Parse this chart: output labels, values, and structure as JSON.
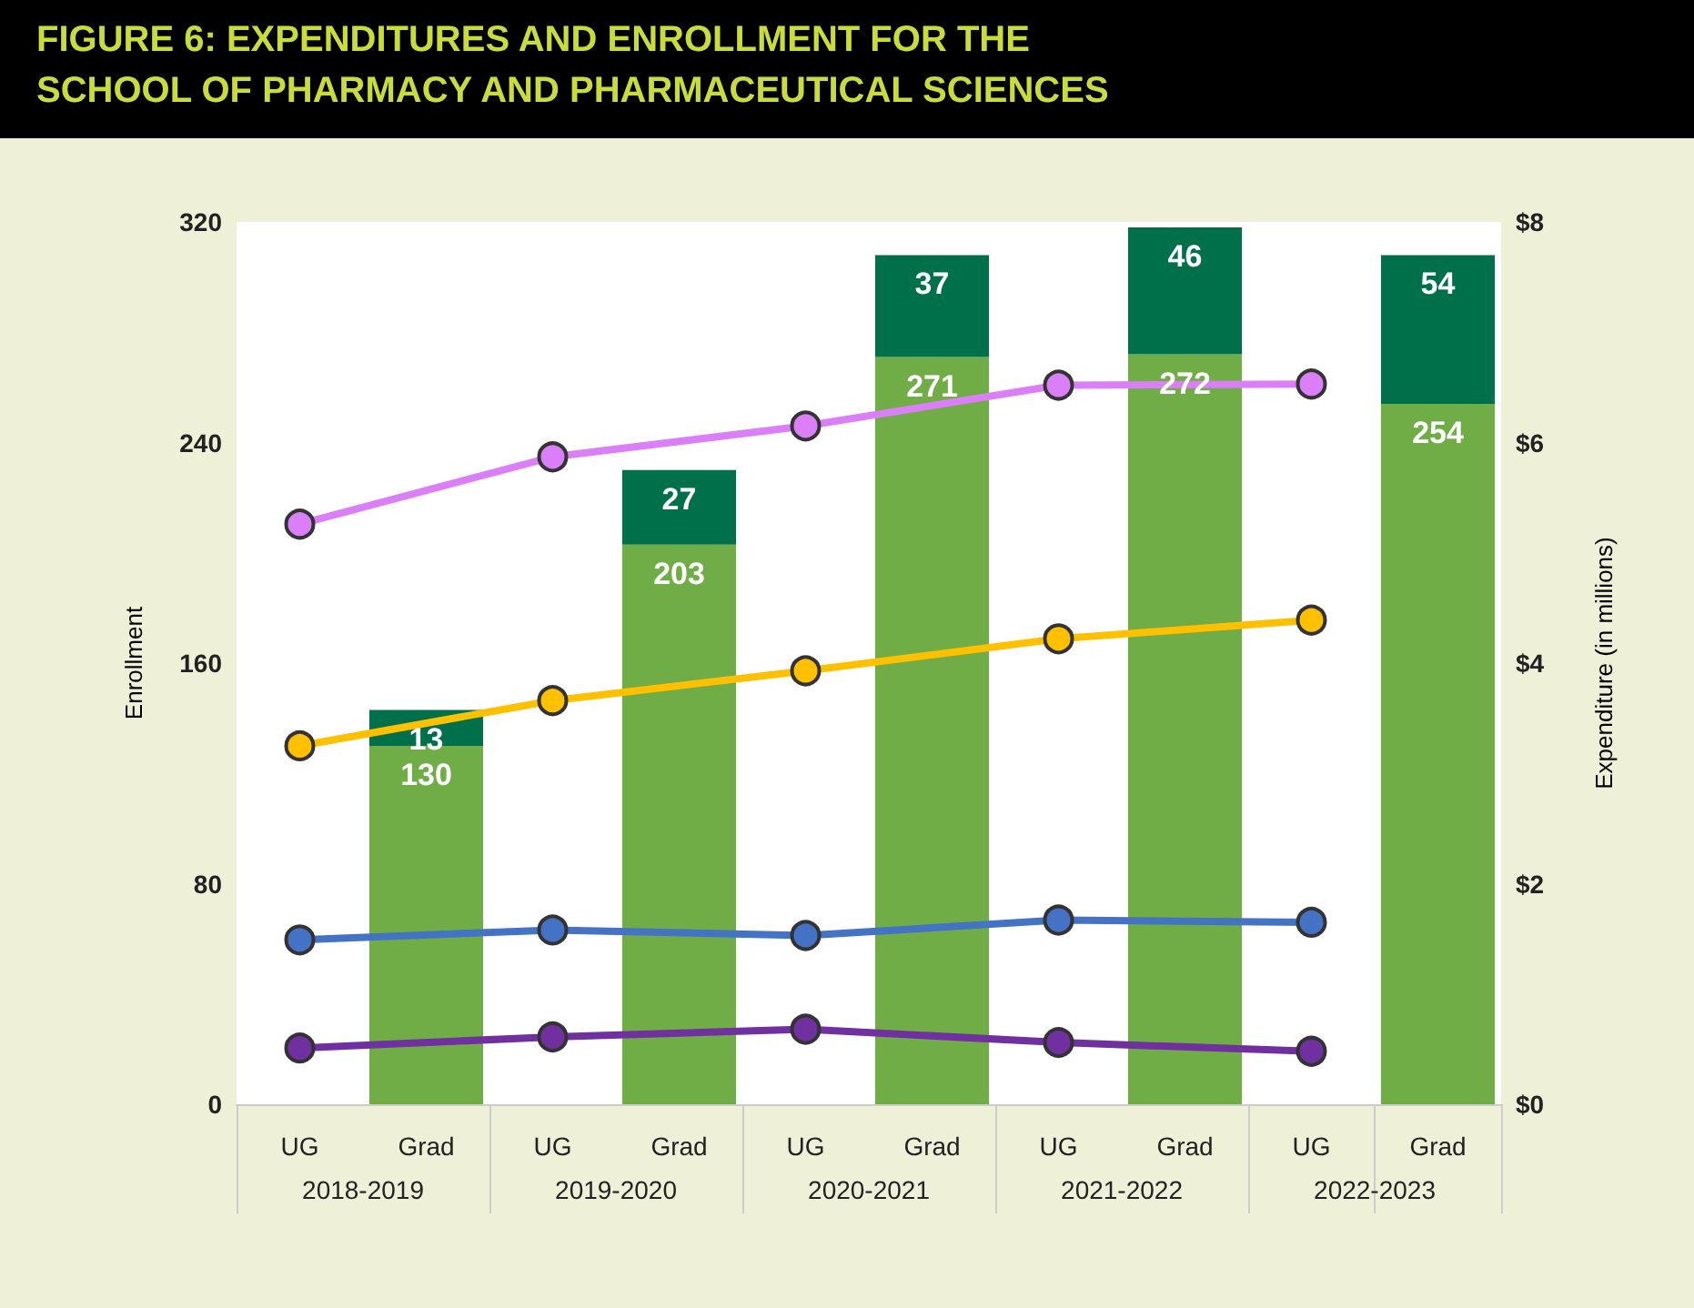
{
  "chart_data": {
    "type": "bar",
    "title": "FIGURE 6: EXPENDITURES AND ENROLLMENT FOR THE SCHOOL OF PHARMACY AND PHARMACEUTICAL SCIENCES",
    "ylabel": "Enrollment",
    "y2label": "Expenditure (in millions)",
    "categories": [
      "UG",
      "Grad",
      "UG",
      "Grad",
      "UG",
      "Grad",
      "UG",
      "Grad",
      "UG",
      "Grad"
    ],
    "annotations": [
      "2018-2019",
      "2019-2020",
      "2020-2021",
      "2021-2022",
      "2022-2023"
    ],
    "stacked": true,
    "grid": false,
    "marker": "circle",
    "line_style": "solid",
    "ylim": [
      0,
      320
    ],
    "yticks": [
      0,
      80,
      160,
      240,
      320
    ],
    "y2lim": [
      0,
      8
    ],
    "y2ticks": [
      {
        "value": 0,
        "label": "$0"
      },
      {
        "value": 2,
        "label": "$2"
      },
      {
        "value": 4,
        "label": "$4"
      },
      {
        "value": 6,
        "label": "$6"
      },
      {
        "value": 8,
        "label": "$8"
      }
    ],
    "series": [
      {
        "color": "#70ad47",
        "values": [
          null,
          130,
          null,
          203,
          null,
          271,
          null,
          272,
          null,
          254
        ],
        "value_labels": [
          null,
          "130",
          null,
          "203",
          null,
          "271",
          null,
          "272",
          null,
          "254"
        ]
      },
      {
        "color": "#00704a",
        "values": [
          null,
          13,
          null,
          27,
          null,
          37,
          null,
          46,
          null,
          54
        ],
        "value_labels": [
          null,
          "13",
          null,
          "27",
          null,
          "37",
          null,
          "46",
          null,
          "54"
        ]
      },
      {
        "type": "line",
        "axis": "y2",
        "color": "#da7ff7",
        "values": [
          5.26,
          null,
          5.87,
          null,
          6.15,
          null,
          6.52,
          null,
          6.53,
          null
        ]
      },
      {
        "type": "line",
        "axis": "y2",
        "color": "#ffc000",
        "values": [
          3.25,
          null,
          3.66,
          null,
          3.93,
          null,
          4.22,
          null,
          4.39,
          null
        ]
      },
      {
        "type": "line",
        "axis": "y2",
        "color": "#4472c4",
        "values": [
          1.49,
          null,
          1.58,
          null,
          1.53,
          null,
          1.67,
          null,
          1.65,
          null
        ]
      },
      {
        "type": "line",
        "axis": "y2",
        "color": "#7030a0",
        "values": [
          0.51,
          null,
          0.61,
          null,
          0.68,
          null,
          0.56,
          null,
          0.48,
          null
        ]
      }
    ]
  }
}
